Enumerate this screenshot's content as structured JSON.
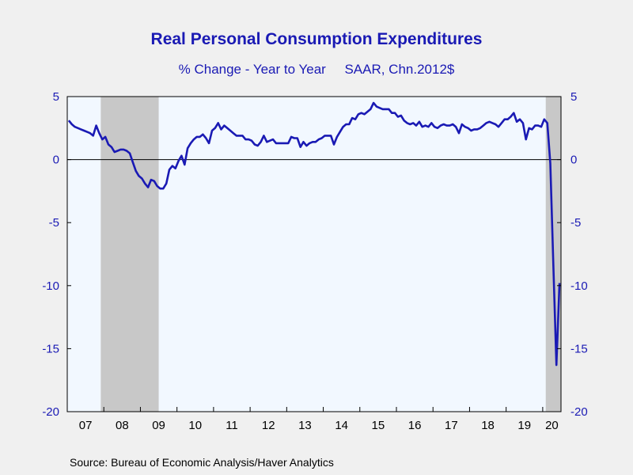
{
  "chart_data": {
    "type": "line",
    "title": "Real Personal Consumption Expenditures",
    "subtitle": "% Change - Year to Year     SAAR, Chn.2012$",
    "source": "Source:  Bureau of Economic Analysis/Haver Analytics",
    "ylim": [
      -20,
      5
    ],
    "y_ticks": [
      5,
      0,
      -5,
      -10,
      -15,
      -20
    ],
    "x_ticks": [
      "07",
      "08",
      "09",
      "10",
      "11",
      "12",
      "13",
      "14",
      "15",
      "16",
      "17",
      "18",
      "19",
      "20"
    ],
    "xlim": [
      "2007-01",
      "2020-06"
    ],
    "grid": false,
    "recessions": [
      {
        "start": "2007-12",
        "end": "2009-06"
      },
      {
        "start": "2020-02",
        "end": "2020-06"
      }
    ],
    "colors": {
      "line": "#1a1ab4",
      "plot_bg": "#f2f8ff",
      "recession": "#c8c8c8",
      "zero_line": "#000000",
      "text": "#1a1ab4"
    },
    "series": [
      {
        "values": [
          [
            "2007-01",
            3.1
          ],
          [
            "2007-02",
            2.8
          ],
          [
            "2007-03",
            2.6
          ],
          [
            "2007-04",
            2.5
          ],
          [
            "2007-05",
            2.4
          ],
          [
            "2007-06",
            2.3
          ],
          [
            "2007-07",
            2.2
          ],
          [
            "2007-08",
            2.1
          ],
          [
            "2007-09",
            1.9
          ],
          [
            "2007-10",
            2.7
          ],
          [
            "2007-11",
            2.1
          ],
          [
            "2007-12",
            1.6
          ],
          [
            "2008-01",
            1.8
          ],
          [
            "2008-02",
            1.2
          ],
          [
            "2008-03",
            1.0
          ],
          [
            "2008-04",
            0.6
          ],
          [
            "2008-05",
            0.7
          ],
          [
            "2008-06",
            0.8
          ],
          [
            "2008-07",
            0.8
          ],
          [
            "2008-08",
            0.7
          ],
          [
            "2008-09",
            0.5
          ],
          [
            "2008-10",
            -0.2
          ],
          [
            "2008-11",
            -0.9
          ],
          [
            "2008-12",
            -1.3
          ],
          [
            "2009-01",
            -1.5
          ],
          [
            "2009-02",
            -1.9
          ],
          [
            "2009-03",
            -2.2
          ],
          [
            "2009-04",
            -1.6
          ],
          [
            "2009-05",
            -1.7
          ],
          [
            "2009-06",
            -2.1
          ],
          [
            "2009-07",
            -2.3
          ],
          [
            "2009-08",
            -2.3
          ],
          [
            "2009-09",
            -1.9
          ],
          [
            "2009-10",
            -0.8
          ],
          [
            "2009-11",
            -0.5
          ],
          [
            "2009-12",
            -0.7
          ],
          [
            "2010-01",
            -0.1
          ],
          [
            "2010-02",
            0.3
          ],
          [
            "2010-03",
            -0.4
          ],
          [
            "2010-04",
            0.9
          ],
          [
            "2010-05",
            1.3
          ],
          [
            "2010-06",
            1.6
          ],
          [
            "2010-07",
            1.8
          ],
          [
            "2010-08",
            1.8
          ],
          [
            "2010-09",
            2.0
          ],
          [
            "2010-10",
            1.7
          ],
          [
            "2010-11",
            1.3
          ],
          [
            "2010-12",
            2.3
          ],
          [
            "2011-01",
            2.5
          ],
          [
            "2011-02",
            2.9
          ],
          [
            "2011-03",
            2.4
          ],
          [
            "2011-04",
            2.7
          ],
          [
            "2011-05",
            2.5
          ],
          [
            "2011-06",
            2.3
          ],
          [
            "2011-07",
            2.1
          ],
          [
            "2011-08",
            1.9
          ],
          [
            "2011-09",
            1.9
          ],
          [
            "2011-10",
            1.9
          ],
          [
            "2011-11",
            1.6
          ],
          [
            "2011-12",
            1.6
          ],
          [
            "2012-01",
            1.5
          ],
          [
            "2012-02",
            1.2
          ],
          [
            "2012-03",
            1.1
          ],
          [
            "2012-04",
            1.4
          ],
          [
            "2012-05",
            1.9
          ],
          [
            "2012-06",
            1.4
          ],
          [
            "2012-07",
            1.5
          ],
          [
            "2012-08",
            1.6
          ],
          [
            "2012-09",
            1.3
          ],
          [
            "2012-10",
            1.3
          ],
          [
            "2012-11",
            1.3
          ],
          [
            "2012-12",
            1.3
          ],
          [
            "2013-01",
            1.3
          ],
          [
            "2013-02",
            1.8
          ],
          [
            "2013-03",
            1.7
          ],
          [
            "2013-04",
            1.7
          ],
          [
            "2013-05",
            1.0
          ],
          [
            "2013-06",
            1.4
          ],
          [
            "2013-07",
            1.1
          ],
          [
            "2013-08",
            1.3
          ],
          [
            "2013-09",
            1.4
          ],
          [
            "2013-10",
            1.4
          ],
          [
            "2013-11",
            1.6
          ],
          [
            "2013-12",
            1.7
          ],
          [
            "2014-01",
            1.9
          ],
          [
            "2014-02",
            1.9
          ],
          [
            "2014-03",
            1.9
          ],
          [
            "2014-04",
            1.2
          ],
          [
            "2014-05",
            1.8
          ],
          [
            "2014-06",
            2.2
          ],
          [
            "2014-07",
            2.6
          ],
          [
            "2014-08",
            2.8
          ],
          [
            "2014-09",
            2.8
          ],
          [
            "2014-10",
            3.3
          ],
          [
            "2014-11",
            3.2
          ],
          [
            "2014-12",
            3.6
          ],
          [
            "2015-01",
            3.7
          ],
          [
            "2015-02",
            3.6
          ],
          [
            "2015-03",
            3.8
          ],
          [
            "2015-04",
            4.0
          ],
          [
            "2015-05",
            4.5
          ],
          [
            "2015-06",
            4.2
          ],
          [
            "2015-07",
            4.1
          ],
          [
            "2015-08",
            4.0
          ],
          [
            "2015-09",
            4.0
          ],
          [
            "2015-10",
            4.0
          ],
          [
            "2015-11",
            3.7
          ],
          [
            "2015-12",
            3.7
          ],
          [
            "2016-01",
            3.4
          ],
          [
            "2016-02",
            3.5
          ],
          [
            "2016-03",
            3.1
          ],
          [
            "2016-04",
            2.9
          ],
          [
            "2016-05",
            2.8
          ],
          [
            "2016-06",
            2.9
          ],
          [
            "2016-07",
            2.7
          ],
          [
            "2016-08",
            3.0
          ],
          [
            "2016-09",
            2.6
          ],
          [
            "2016-10",
            2.7
          ],
          [
            "2016-11",
            2.6
          ],
          [
            "2016-12",
            2.9
          ],
          [
            "2017-01",
            2.6
          ],
          [
            "2017-02",
            2.5
          ],
          [
            "2017-03",
            2.7
          ],
          [
            "2017-04",
            2.8
          ],
          [
            "2017-05",
            2.7
          ],
          [
            "2017-06",
            2.7
          ],
          [
            "2017-07",
            2.8
          ],
          [
            "2017-08",
            2.6
          ],
          [
            "2017-09",
            2.1
          ],
          [
            "2017-10",
            2.8
          ],
          [
            "2017-11",
            2.6
          ],
          [
            "2017-12",
            2.5
          ],
          [
            "2018-01",
            2.3
          ],
          [
            "2018-02",
            2.4
          ],
          [
            "2018-03",
            2.4
          ],
          [
            "2018-04",
            2.5
          ],
          [
            "2018-05",
            2.7
          ],
          [
            "2018-06",
            2.9
          ],
          [
            "2018-07",
            3.0
          ],
          [
            "2018-08",
            2.9
          ],
          [
            "2018-09",
            2.8
          ],
          [
            "2018-10",
            2.6
          ],
          [
            "2018-11",
            2.9
          ],
          [
            "2018-12",
            3.2
          ],
          [
            "2019-01",
            3.2
          ],
          [
            "2019-02",
            3.4
          ],
          [
            "2019-03",
            3.7
          ],
          [
            "2019-04",
            3.0
          ],
          [
            "2019-05",
            3.2
          ],
          [
            "2019-06",
            2.9
          ],
          [
            "2019-07",
            1.6
          ],
          [
            "2019-08",
            2.5
          ],
          [
            "2019-09",
            2.4
          ],
          [
            "2019-10",
            2.7
          ],
          [
            "2019-11",
            2.7
          ],
          [
            "2019-12",
            2.6
          ],
          [
            "2020-01",
            3.2
          ],
          [
            "2020-02",
            2.9
          ],
          [
            "2020-03",
            -0.3
          ],
          [
            "2020-04",
            -8.5
          ],
          [
            "2020-05",
            -16.3
          ],
          [
            "2020-06",
            -9.8
          ]
        ]
      }
    ]
  }
}
